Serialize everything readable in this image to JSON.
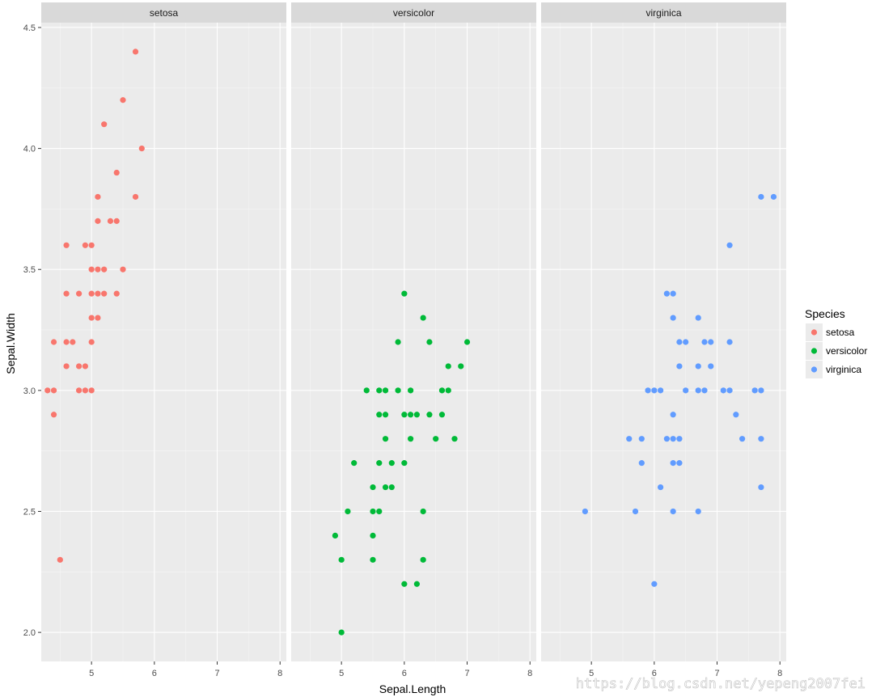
{
  "chart_data": {
    "type": "scatter",
    "facet_by": "Species",
    "facets": [
      "setosa",
      "versicolor",
      "virginica"
    ],
    "xlabel": "Sepal.Length",
    "ylabel": "Sepal.Width",
    "xlim": [
      4.2,
      8.1
    ],
    "ylim": [
      1.88,
      4.52
    ],
    "x_ticks": [
      5,
      6,
      7,
      8
    ],
    "y_ticks": [
      2.0,
      2.5,
      3.0,
      3.5,
      4.0,
      4.5
    ],
    "x_tick_labels": [
      "5",
      "6",
      "7",
      "8"
    ],
    "y_tick_labels": [
      "2.0",
      "2.5",
      "3.0",
      "3.5",
      "4.0",
      "4.5"
    ],
    "grid": true,
    "legend": {
      "title": "Species",
      "position": "right",
      "entries": [
        "setosa",
        "versicolor",
        "virginica"
      ]
    },
    "colors": {
      "setosa": "#F8766D",
      "versicolor": "#00BA38",
      "virginica": "#619CFF"
    },
    "series": [
      {
        "name": "setosa",
        "points": [
          [
            5.7,
            4.4
          ],
          [
            5.5,
            4.2
          ],
          [
            5.2,
            4.1
          ],
          [
            5.8,
            4.0
          ],
          [
            5.4,
            3.9
          ],
          [
            5.1,
            3.8
          ],
          [
            5.7,
            3.8
          ],
          [
            5.1,
            3.7
          ],
          [
            5.3,
            3.7
          ],
          [
            5.4,
            3.7
          ],
          [
            4.6,
            3.6
          ],
          [
            4.9,
            3.6
          ],
          [
            5.0,
            3.6
          ],
          [
            5.0,
            3.5
          ],
          [
            5.1,
            3.5
          ],
          [
            5.2,
            3.5
          ],
          [
            5.5,
            3.5
          ],
          [
            4.6,
            3.4
          ],
          [
            4.8,
            3.4
          ],
          [
            5.0,
            3.4
          ],
          [
            5.1,
            3.4
          ],
          [
            5.2,
            3.4
          ],
          [
            5.4,
            3.4
          ],
          [
            5.0,
            3.3
          ],
          [
            5.1,
            3.3
          ],
          [
            4.4,
            3.2
          ],
          [
            4.6,
            3.2
          ],
          [
            4.7,
            3.2
          ],
          [
            5.0,
            3.2
          ],
          [
            4.6,
            3.1
          ],
          [
            4.8,
            3.1
          ],
          [
            4.9,
            3.1
          ],
          [
            4.3,
            3.0
          ],
          [
            4.4,
            3.0
          ],
          [
            4.8,
            3.0
          ],
          [
            4.9,
            3.0
          ],
          [
            5.0,
            3.0
          ],
          [
            4.4,
            2.9
          ],
          [
            4.5,
            2.3
          ]
        ]
      },
      {
        "name": "versicolor",
        "points": [
          [
            6.0,
            3.4
          ],
          [
            6.3,
            3.3
          ],
          [
            5.9,
            3.2
          ],
          [
            6.4,
            3.2
          ],
          [
            7.0,
            3.2
          ],
          [
            6.7,
            3.1
          ],
          [
            6.9,
            3.1
          ],
          [
            5.4,
            3.0
          ],
          [
            5.6,
            3.0
          ],
          [
            5.7,
            3.0
          ],
          [
            5.9,
            3.0
          ],
          [
            6.1,
            3.0
          ],
          [
            6.6,
            3.0
          ],
          [
            6.7,
            3.0
          ],
          [
            5.6,
            2.9
          ],
          [
            5.7,
            2.9
          ],
          [
            6.0,
            2.9
          ],
          [
            6.1,
            2.9
          ],
          [
            6.2,
            2.9
          ],
          [
            6.4,
            2.9
          ],
          [
            6.6,
            2.9
          ],
          [
            5.7,
            2.8
          ],
          [
            6.1,
            2.8
          ],
          [
            6.5,
            2.8
          ],
          [
            6.8,
            2.8
          ],
          [
            5.2,
            2.7
          ],
          [
            5.6,
            2.7
          ],
          [
            5.8,
            2.7
          ],
          [
            6.0,
            2.7
          ],
          [
            5.5,
            2.6
          ],
          [
            5.7,
            2.6
          ],
          [
            5.8,
            2.6
          ],
          [
            5.1,
            2.5
          ],
          [
            5.5,
            2.5
          ],
          [
            5.6,
            2.5
          ],
          [
            6.3,
            2.5
          ],
          [
            4.9,
            2.4
          ],
          [
            5.5,
            2.4
          ],
          [
            5.0,
            2.3
          ],
          [
            5.5,
            2.3
          ],
          [
            6.3,
            2.3
          ],
          [
            6.0,
            2.2
          ],
          [
            6.2,
            2.2
          ],
          [
            5.0,
            2.0
          ]
        ]
      },
      {
        "name": "virginica",
        "points": [
          [
            7.7,
            3.8
          ],
          [
            7.9,
            3.8
          ],
          [
            7.2,
            3.6
          ],
          [
            6.2,
            3.4
          ],
          [
            6.3,
            3.4
          ],
          [
            6.3,
            3.3
          ],
          [
            6.7,
            3.3
          ],
          [
            6.4,
            3.2
          ],
          [
            6.5,
            3.2
          ],
          [
            6.8,
            3.2
          ],
          [
            6.9,
            3.2
          ],
          [
            7.2,
            3.2
          ],
          [
            6.4,
            3.1
          ],
          [
            6.7,
            3.1
          ],
          [
            6.9,
            3.1
          ],
          [
            5.9,
            3.0
          ],
          [
            6.0,
            3.0
          ],
          [
            6.1,
            3.0
          ],
          [
            6.5,
            3.0
          ],
          [
            6.7,
            3.0
          ],
          [
            6.8,
            3.0
          ],
          [
            7.1,
            3.0
          ],
          [
            7.2,
            3.0
          ],
          [
            7.6,
            3.0
          ],
          [
            7.7,
            3.0
          ],
          [
            6.3,
            2.9
          ],
          [
            7.3,
            2.9
          ],
          [
            5.6,
            2.8
          ],
          [
            5.8,
            2.8
          ],
          [
            6.2,
            2.8
          ],
          [
            6.3,
            2.8
          ],
          [
            6.4,
            2.8
          ],
          [
            7.4,
            2.8
          ],
          [
            7.7,
            2.8
          ],
          [
            5.8,
            2.7
          ],
          [
            6.3,
            2.7
          ],
          [
            6.4,
            2.7
          ],
          [
            6.1,
            2.6
          ],
          [
            7.7,
            2.6
          ],
          [
            4.9,
            2.5
          ],
          [
            5.7,
            2.5
          ],
          [
            6.3,
            2.5
          ],
          [
            6.7,
            2.5
          ],
          [
            6.0,
            2.2
          ]
        ]
      }
    ]
  },
  "watermark": {
    "text": "https://blog.csdn.net/yepeng2007fei"
  }
}
